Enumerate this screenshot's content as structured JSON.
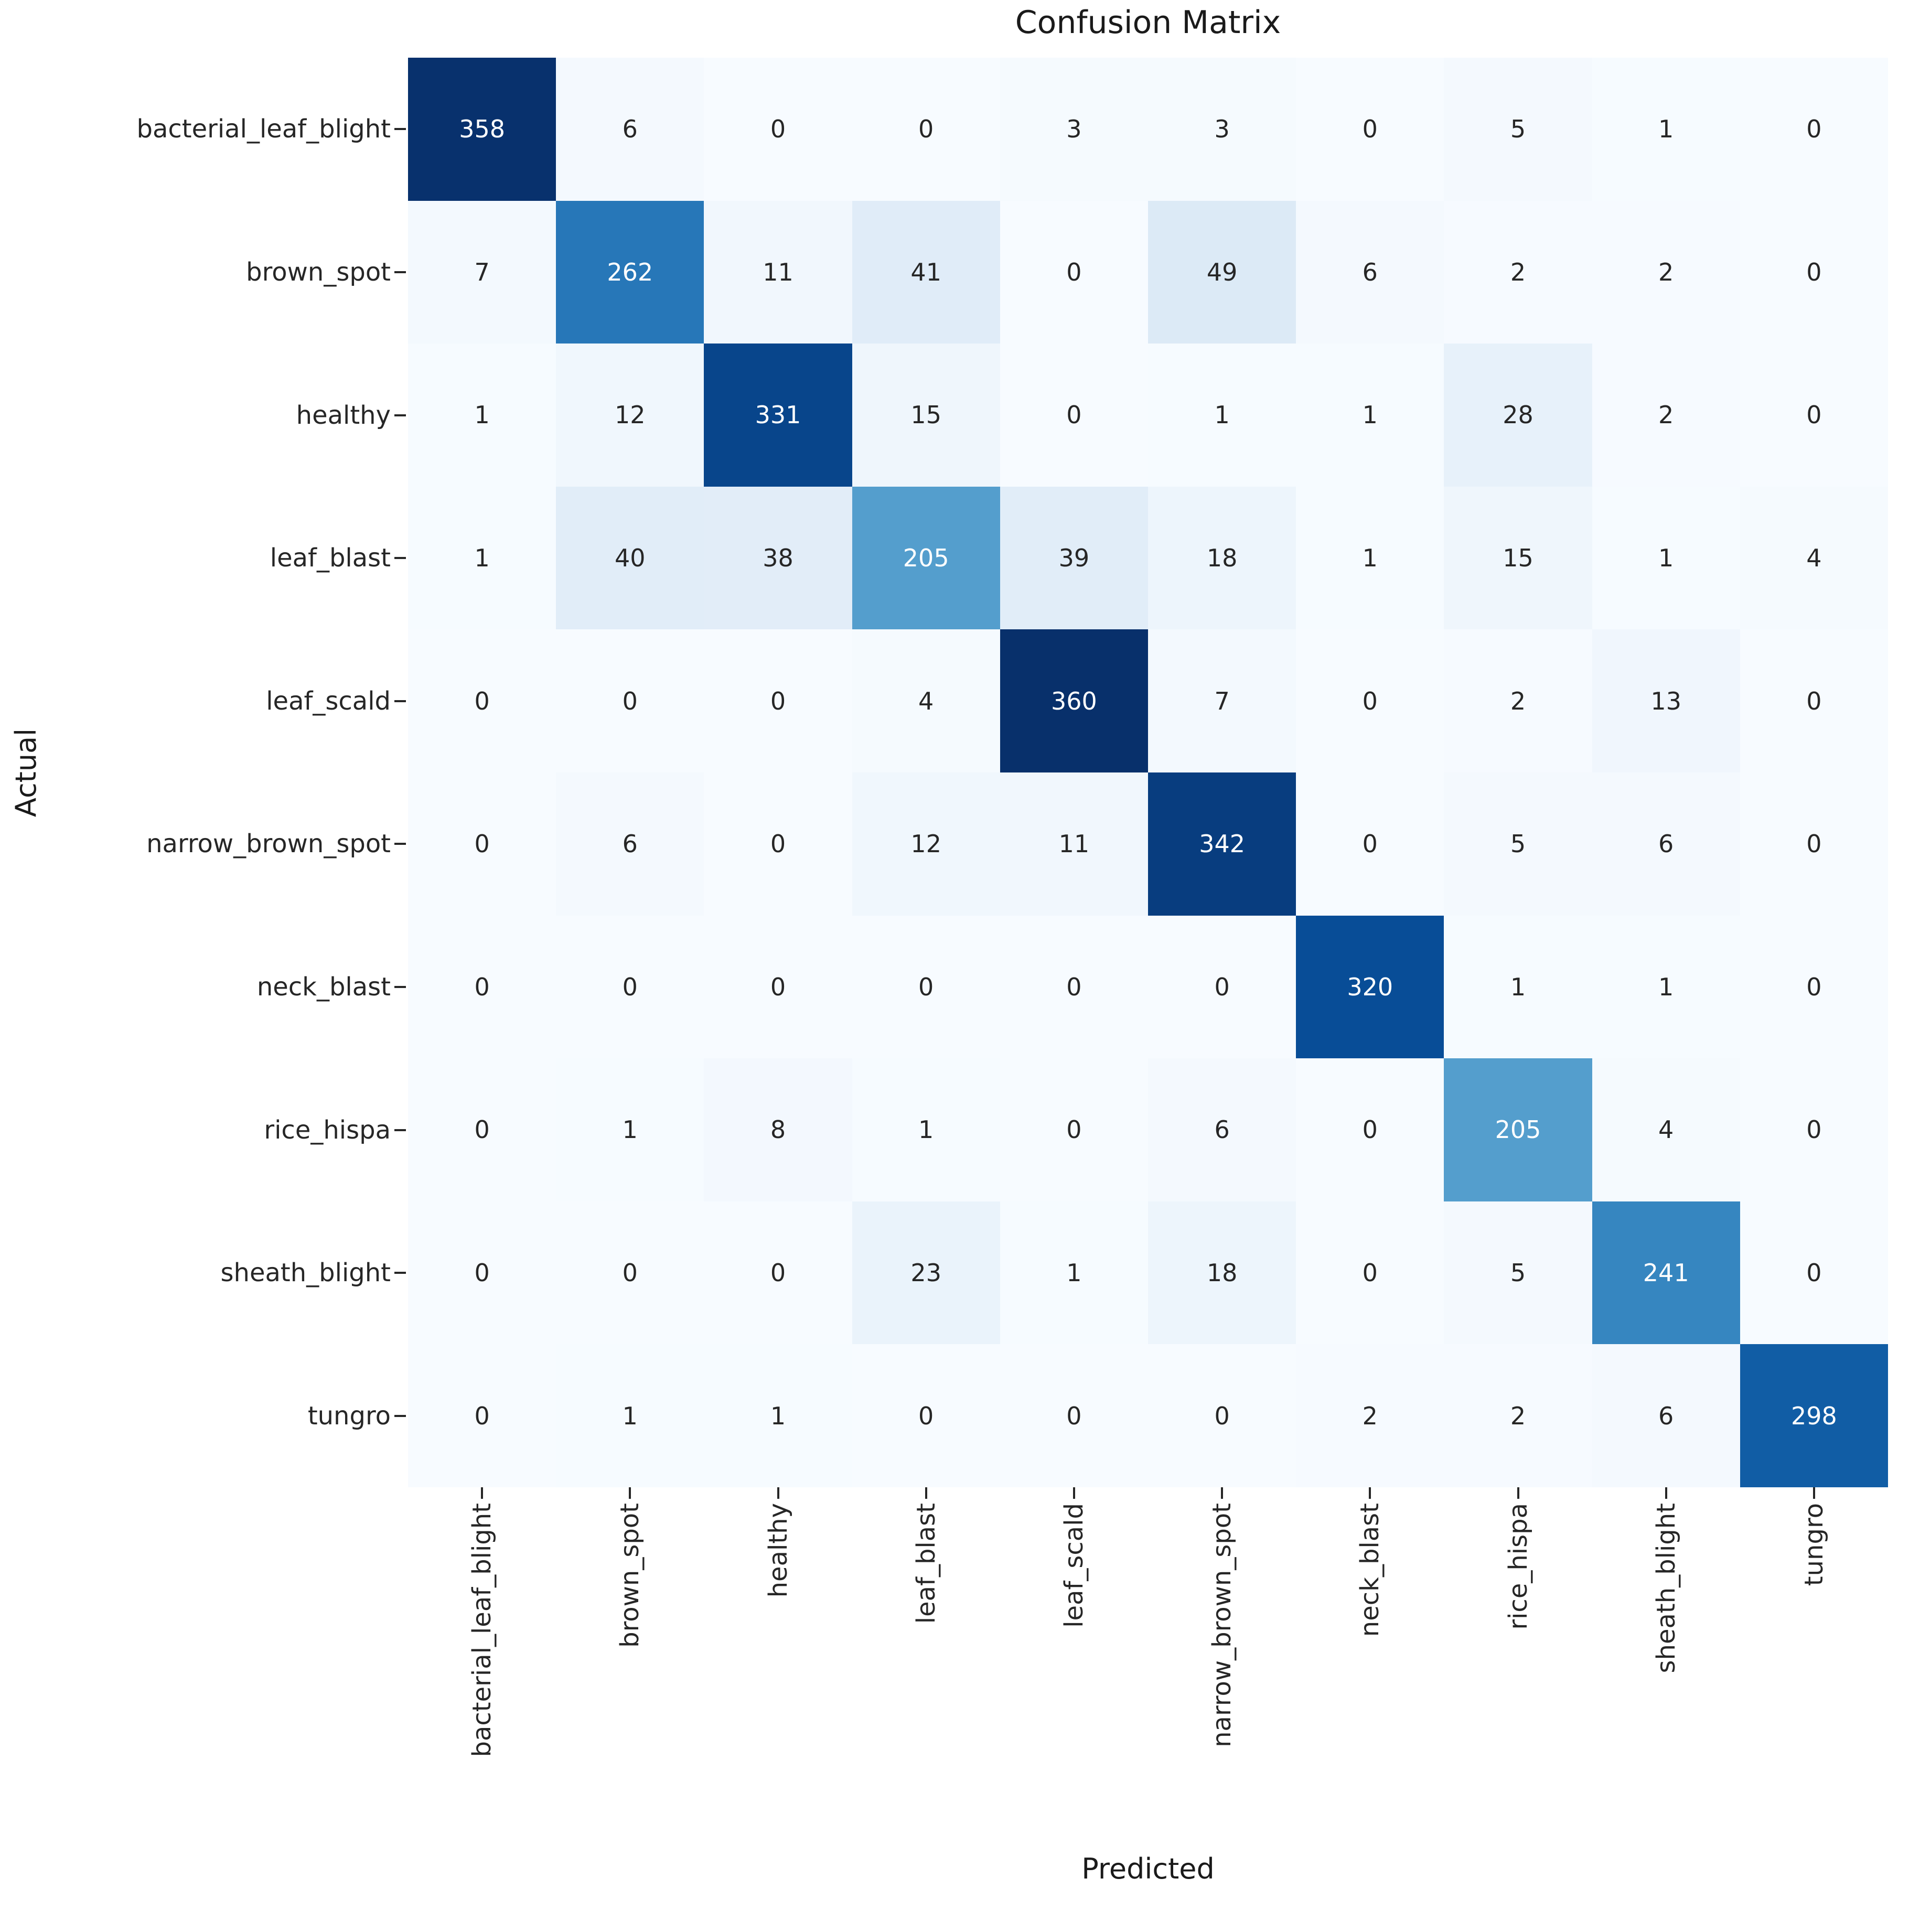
{
  "chart_data": {
    "type": "heatmap",
    "title": "Confusion Matrix",
    "xlabel": "Predicted",
    "ylabel": "Actual",
    "categories": [
      "bacterial_leaf_blight",
      "brown_spot",
      "healthy",
      "leaf_blast",
      "leaf_scald",
      "narrow_brown_spot",
      "neck_blast",
      "rice_hispa",
      "sheath_blight",
      "tungro"
    ],
    "matrix": [
      [
        358,
        6,
        0,
        0,
        3,
        3,
        0,
        5,
        1,
        0
      ],
      [
        7,
        262,
        11,
        41,
        0,
        49,
        6,
        2,
        2,
        0
      ],
      [
        1,
        12,
        331,
        15,
        0,
        1,
        1,
        28,
        2,
        0
      ],
      [
        1,
        40,
        38,
        205,
        39,
        18,
        1,
        15,
        1,
        4
      ],
      [
        0,
        0,
        0,
        4,
        360,
        7,
        0,
        2,
        13,
        0
      ],
      [
        0,
        6,
        0,
        12,
        11,
        342,
        0,
        5,
        6,
        0
      ],
      [
        0,
        0,
        0,
        0,
        0,
        0,
        320,
        1,
        1,
        0
      ],
      [
        0,
        1,
        8,
        1,
        0,
        6,
        0,
        205,
        4,
        0
      ],
      [
        0,
        0,
        0,
        23,
        1,
        18,
        0,
        5,
        241,
        0
      ],
      [
        0,
        1,
        1,
        0,
        0,
        0,
        2,
        2,
        6,
        298
      ]
    ],
    "vmin": 0,
    "vmax": 360,
    "colormap": "Blues",
    "annotated": true,
    "legend": "none",
    "grid": false
  },
  "colors": {
    "background": "#ffffff",
    "title": "#1a1a1a",
    "tick_label": "#262626",
    "annotation_dark": "#262626",
    "annotation_light": "#ffffff",
    "colormap_stops": [
      "#f7fbff",
      "#deebf7",
      "#c6dbef",
      "#9ecae1",
      "#6baed6",
      "#4292c6",
      "#2171b5",
      "#08519c",
      "#08306b"
    ]
  }
}
